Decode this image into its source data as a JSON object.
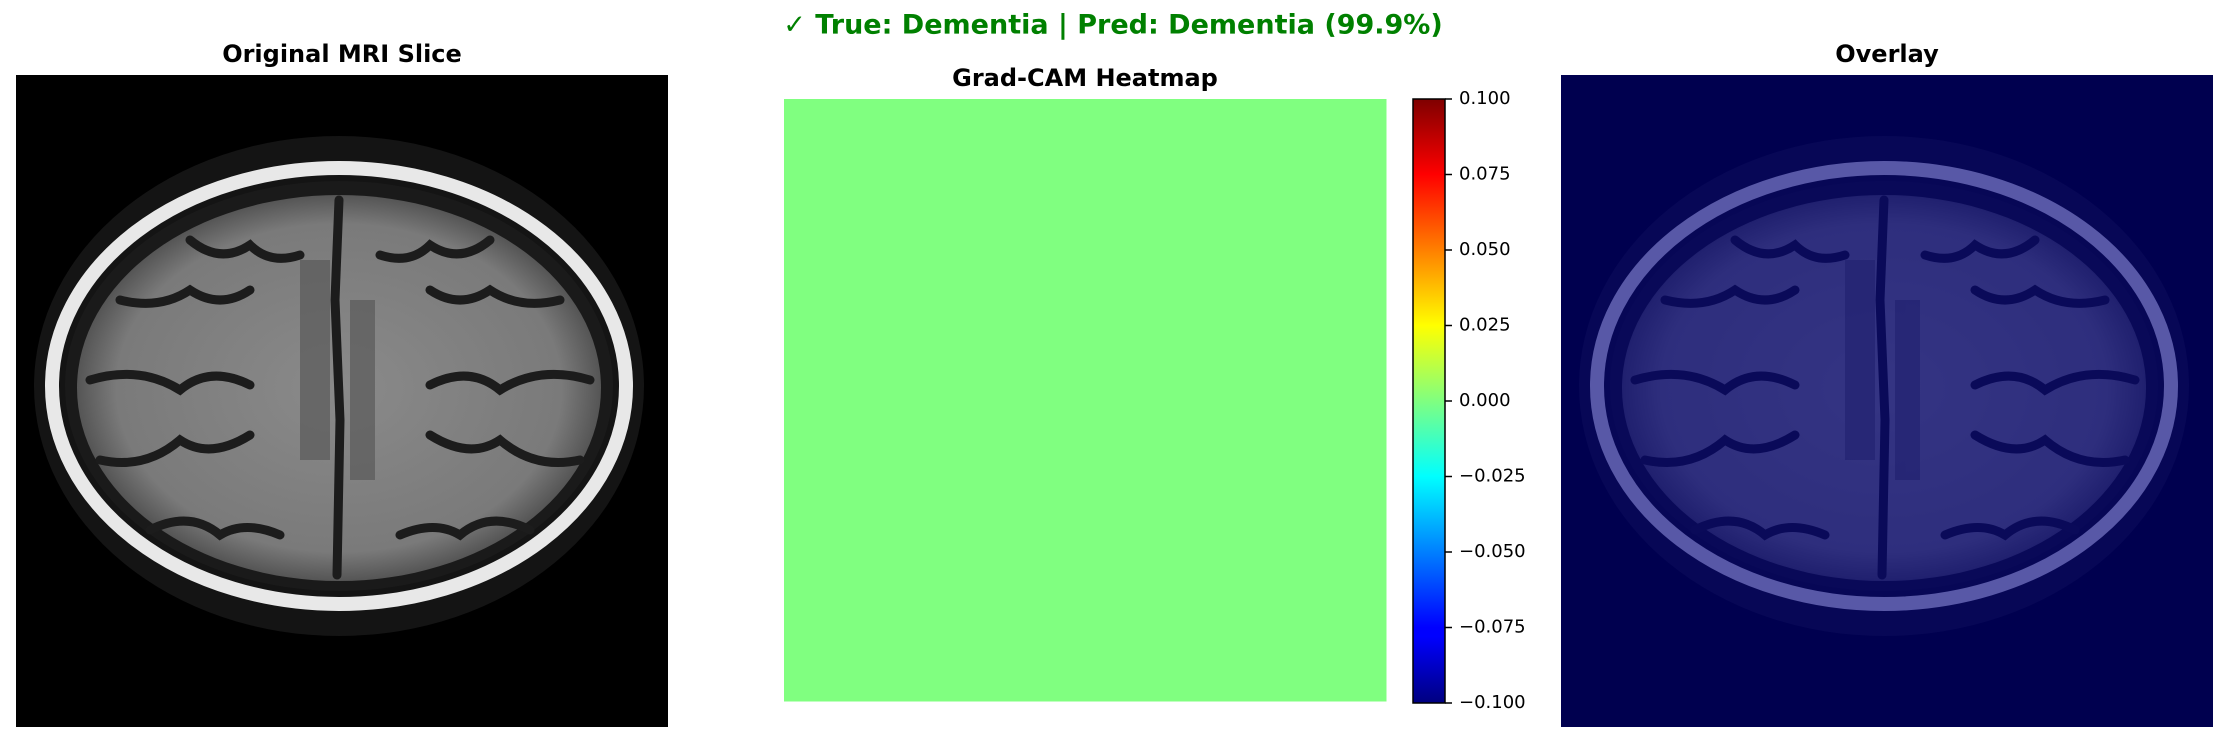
{
  "chart_data": {
    "type": "heatmap",
    "title": "✓ True: Dementia | Pred: Dementia (99.9%)",
    "panels": [
      "Original MRI Slice",
      "Grad-CAM Heatmap",
      "Overlay"
    ],
    "values": [
      [
        0
      ]
    ],
    "colormap": "jet",
    "title_color": "#008000",
    "clim": [
      -0.1,
      0.1
    ],
    "cticks": [
      {
        "value": -0.1,
        "label": "−0.100"
      },
      {
        "value": -0.075,
        "label": "−0.075"
      },
      {
        "value": -0.05,
        "label": "−0.050"
      },
      {
        "value": -0.025,
        "label": "−0.025"
      },
      {
        "value": 0,
        "label": "0.000"
      },
      {
        "value": 0.025,
        "label": "0.025"
      },
      {
        "value": 0.05,
        "label": "0.050"
      },
      {
        "value": 0.075,
        "label": "0.075"
      },
      {
        "value": 0.1,
        "label": "0.100"
      }
    ]
  }
}
